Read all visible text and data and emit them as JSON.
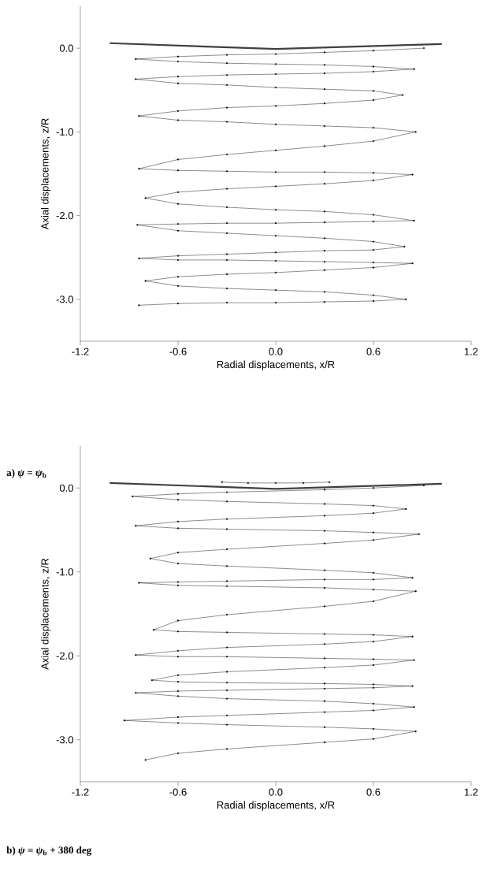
{
  "chart_data": [
    {
      "type": "line",
      "xlabel": "Radial displacements, x/R",
      "ylabel": "Axial displacements, z/R",
      "xlim": [
        -1.2,
        1.2
      ],
      "ylim": [
        -3.5,
        0.5
      ],
      "xticks": [
        {
          "value": -1.2,
          "label": "-1.2"
        },
        {
          "value": -0.6,
          "label": "-0.6"
        },
        {
          "value": 0,
          "label": "0.0"
        },
        {
          "value": 0.6,
          "label": "0.6"
        },
        {
          "value": 1.2,
          "label": "1.2"
        }
      ],
      "yticks": [
        {
          "value": 0,
          "label": "0.0"
        },
        {
          "value": -1,
          "label": "-1.0"
        },
        {
          "value": -2,
          "label": "-2.0"
        },
        {
          "value": -3,
          "label": "-3.0"
        }
      ],
      "line_style": "solid",
      "annotations": [
        "a) *ψ* = *ψ*$_{b}$"
      ],
      "series": [
        {
          "color": "#000000",
          "marker": "circle",
          "x": [
            0.91,
            0.6,
            0.3,
            0,
            -0.3,
            -0.6,
            -0.86,
            -0.6,
            -0.3,
            0,
            0.3,
            0.6,
            0.85,
            0.6,
            0.3,
            0,
            -0.3,
            -0.6,
            -0.86,
            -0.6,
            -0.3,
            0,
            0.3,
            0.6,
            0.78,
            0.6,
            0.3,
            0,
            -0.3,
            -0.6,
            -0.84,
            -0.6,
            -0.3,
            0,
            0.3,
            0.6,
            0.86,
            0.6,
            0.3,
            0,
            -0.3,
            -0.6,
            -0.84,
            -0.6,
            -0.3,
            0,
            0.3,
            0.6,
            0.84,
            0.6,
            0.3,
            0,
            -0.3,
            -0.6,
            -0.8,
            -0.6,
            -0.3,
            0,
            0.3,
            0.6,
            0.85,
            0.6,
            0.3,
            0,
            -0.3,
            -0.6,
            -0.85,
            -0.6,
            -0.3,
            0,
            0.3,
            0.6,
            0.79,
            0.6,
            0.3,
            0,
            -0.3,
            -0.6,
            -0.84,
            -0.6,
            -0.3,
            0,
            0.3,
            0.6,
            0.84,
            0.6,
            0.3,
            0,
            -0.3,
            -0.6,
            -0.8,
            -0.6,
            -0.3,
            0,
            0.3,
            0.6,
            0.8,
            0.6,
            0.3,
            0,
            -0.3,
            -0.6,
            -0.84
          ],
          "values": [
            0.0,
            -0.03,
            -0.05,
            -0.07,
            -0.08,
            -0.1,
            -0.13,
            -0.16,
            -0.18,
            -0.19,
            -0.2,
            -0.22,
            -0.25,
            -0.28,
            -0.3,
            -0.31,
            -0.32,
            -0.34,
            -0.37,
            -0.42,
            -0.44,
            -0.47,
            -0.49,
            -0.51,
            -0.56,
            -0.62,
            -0.66,
            -0.69,
            -0.71,
            -0.75,
            -0.81,
            -0.86,
            -0.88,
            -0.91,
            -0.93,
            -0.95,
            -1.0,
            -1.11,
            -1.17,
            -1.22,
            -1.27,
            -1.33,
            -1.44,
            -1.46,
            -1.47,
            -1.48,
            -1.48,
            -1.49,
            -1.51,
            -1.58,
            -1.62,
            -1.65,
            -1.68,
            -1.72,
            -1.79,
            -1.86,
            -1.9,
            -1.93,
            -1.95,
            -1.99,
            -2.06,
            -2.07,
            -2.08,
            -2.09,
            -2.09,
            -2.1,
            -2.11,
            -2.18,
            -2.21,
            -2.24,
            -2.27,
            -2.31,
            -2.37,
            -2.41,
            -2.42,
            -2.44,
            -2.46,
            -2.48,
            -2.51,
            -2.53,
            -2.53,
            -2.54,
            -2.55,
            -2.56,
            -2.57,
            -2.62,
            -2.65,
            -2.68,
            -2.7,
            -2.73,
            -2.78,
            -2.84,
            -2.87,
            -2.89,
            -2.91,
            -2.95,
            -3.0,
            -3.02,
            -3.03,
            -3.04,
            -3.04,
            -3.05,
            -3.07
          ]
        },
        {
          "color": "#404040",
          "marker": "none",
          "x": [
            -1.02,
            0,
            1.02
          ],
          "values": [
            0.06,
            -0.01,
            0.05
          ]
        }
      ]
    },
    {
      "type": "line",
      "xlabel": "Radial displacements, x/R",
      "ylabel": "Axial displacements, z/R",
      "xlim": [
        -1.2,
        1.2
      ],
      "ylim": [
        -3.5,
        0.5
      ],
      "xticks": [
        {
          "value": -1.2,
          "label": "-1.2"
        },
        {
          "value": -0.6,
          "label": "-0.6"
        },
        {
          "value": 0,
          "label": "0.0"
        },
        {
          "value": 0.6,
          "label": "0.6"
        },
        {
          "value": 1.2,
          "label": "1.2"
        }
      ],
      "yticks": [
        {
          "value": 0,
          "label": "0.0"
        },
        {
          "value": -1,
          "label": "-1.0"
        },
        {
          "value": -2,
          "label": "-2.0"
        },
        {
          "value": -3,
          "label": "-3.0"
        }
      ],
      "line_style": "solid",
      "annotations": [
        "b) *ψ* = *ψ*$_{b}$ + 380 deg"
      ],
      "series": [
        {
          "color": "#000000",
          "marker": "circle",
          "x": [
            0.91,
            0.6,
            0.3,
            -0.3,
            -0.6,
            -0.88,
            -0.6,
            -0.3,
            0.3,
            0.6,
            0.8,
            0.6,
            0.3,
            -0.3,
            -0.6,
            -0.86,
            -0.6,
            -0.3,
            0.3,
            0.6,
            0.88,
            0.6,
            0.3,
            -0.3,
            -0.6,
            -0.77,
            -0.6,
            -0.3,
            0.3,
            0.6,
            0.84,
            0.6,
            0.3,
            -0.3,
            -0.6,
            -0.84,
            -0.6,
            -0.3,
            0.3,
            0.6,
            0.86,
            0.6,
            0.3,
            -0.3,
            -0.6,
            -0.75,
            -0.6,
            -0.3,
            0.3,
            0.6,
            0.84,
            0.6,
            0.3,
            -0.3,
            -0.6,
            -0.86,
            -0.6,
            -0.3,
            0.3,
            0.6,
            0.85,
            0.6,
            0.3,
            -0.3,
            -0.6,
            -0.76,
            -0.6,
            -0.3,
            0.3,
            0.6,
            0.84,
            0.6,
            0.3,
            -0.3,
            -0.6,
            -0.86,
            -0.6,
            -0.3,
            0.3,
            0.6,
            0.85,
            0.6,
            0.3,
            -0.3,
            -0.6,
            -0.93,
            -0.6,
            -0.3,
            0.3,
            0.6,
            0.86,
            0.6,
            0.3,
            -0.3,
            -0.6,
            -0.8
          ],
          "values": [
            0.03,
            0.0,
            -0.02,
            -0.05,
            -0.07,
            -0.1,
            -0.14,
            -0.16,
            -0.19,
            -0.21,
            -0.25,
            -0.3,
            -0.33,
            -0.37,
            -0.4,
            -0.45,
            -0.48,
            -0.49,
            -0.51,
            -0.53,
            -0.55,
            -0.62,
            -0.66,
            -0.73,
            -0.77,
            -0.84,
            -0.9,
            -0.93,
            -0.98,
            -1.01,
            -1.07,
            -1.09,
            -1.09,
            -1.11,
            -1.12,
            -1.13,
            -1.16,
            -1.17,
            -1.19,
            -1.21,
            -1.23,
            -1.35,
            -1.41,
            -1.51,
            -1.58,
            -1.69,
            -1.71,
            -1.72,
            -1.74,
            -1.75,
            -1.77,
            -1.83,
            -1.86,
            -1.9,
            -1.94,
            -1.99,
            -2.01,
            -2.01,
            -2.03,
            -2.04,
            -2.05,
            -2.11,
            -2.14,
            -2.19,
            -2.23,
            -2.29,
            -2.31,
            -2.32,
            -2.33,
            -2.34,
            -2.36,
            -2.38,
            -2.39,
            -2.41,
            -2.42,
            -2.44,
            -2.48,
            -2.51,
            -2.54,
            -2.57,
            -2.61,
            -2.65,
            -2.67,
            -2.71,
            -2.73,
            -2.77,
            -2.8,
            -2.82,
            -2.85,
            -2.87,
            -2.9,
            -2.99,
            -3.03,
            -3.11,
            -3.16,
            -3.24
          ]
        },
        {
          "color": "#000000",
          "marker": "circle",
          "x": [
            -0.33,
            -0.17,
            0,
            0.17,
            0.33
          ],
          "values": [
            0.07,
            0.06,
            0.06,
            0.06,
            0.07
          ]
        },
        {
          "color": "#404040",
          "marker": "none",
          "x": [
            -1.02,
            0,
            1.02
          ],
          "values": [
            0.06,
            -0.01,
            0.05
          ]
        }
      ]
    }
  ]
}
